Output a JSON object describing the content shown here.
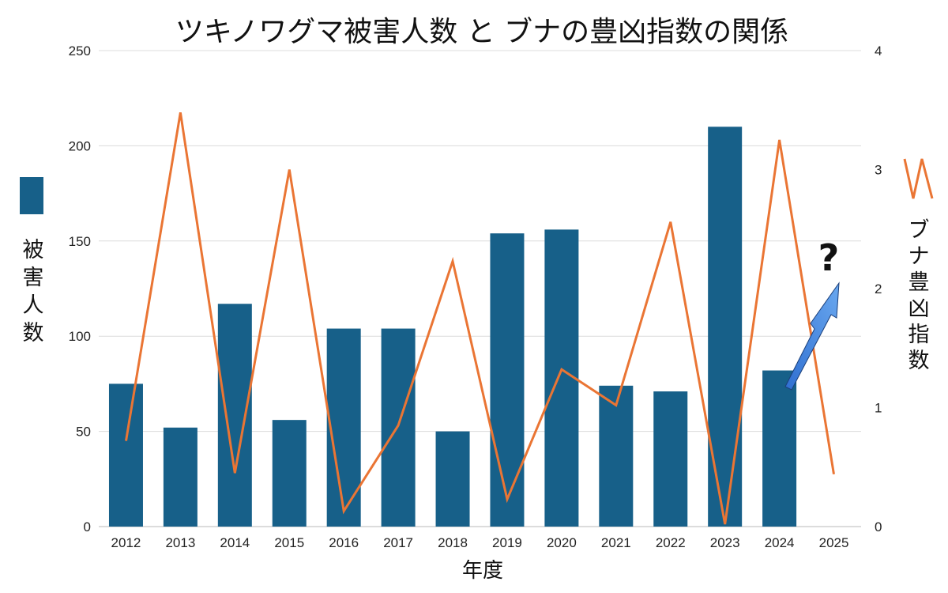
{
  "chart_data": {
    "type": "bar+line",
    "title": "ツキノワグマ被害人数 と ブナの豊凶指数の関係",
    "xlabel": "年度",
    "categories": [
      "2012",
      "2013",
      "2014",
      "2015",
      "2016",
      "2017",
      "2018",
      "2019",
      "2020",
      "2021",
      "2022",
      "2023",
      "2024",
      "2025"
    ],
    "left_axis": {
      "label": [
        "被",
        "害",
        "人",
        "数"
      ],
      "ylim": [
        0,
        250
      ],
      "ticks": [
        0,
        50,
        100,
        150,
        200,
        250
      ]
    },
    "right_axis": {
      "label": [
        "ブ",
        "ナ",
        "豊",
        "凶",
        "指",
        "数"
      ],
      "ylim": [
        0,
        4
      ],
      "ticks": [
        0,
        1,
        2,
        3,
        4
      ]
    },
    "series": [
      {
        "name": "被害人数",
        "type": "bar",
        "axis": "left",
        "color": "#176089",
        "values": [
          75,
          52,
          117,
          56,
          104,
          104,
          50,
          154,
          156,
          74,
          71,
          210,
          82,
          null
        ]
      },
      {
        "name": "ブナ豊凶指数",
        "type": "line",
        "axis": "right",
        "color": "#ea7534",
        "values": [
          0.72,
          3.48,
          0.45,
          3.0,
          0.13,
          0.85,
          2.23,
          0.23,
          1.32,
          1.02,
          2.56,
          0.02,
          3.25,
          0.44
        ]
      }
    ],
    "annotation": {
      "text": "?",
      "arrow_color": "#4a8ee0",
      "note": "upward arrow pointing to 2025 forecast"
    },
    "grid": true
  }
}
